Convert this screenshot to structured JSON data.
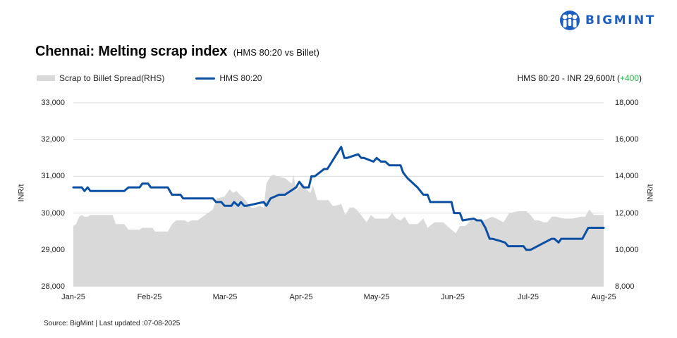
{
  "brand": {
    "name": "BIGMINT",
    "icon": "bigmint-people-logo-icon",
    "color": "#1f5fbf"
  },
  "header": {
    "title": "Chennai: Melting scrap index",
    "subtitle": "(HMS 80:20 vs Billet)"
  },
  "legend": {
    "items": [
      {
        "label": "Scrap to Billet Spread(RHS)",
        "type": "area",
        "color": "#d9d9d9"
      },
      {
        "label": "HMS 80:20",
        "type": "line",
        "color": "#0b4fa2"
      }
    ]
  },
  "latest": {
    "text": "HMS 80:20 - INR 29,600/t",
    "change_open": "(",
    "change": "+400",
    "change_close": ")",
    "change_color": "#2bb34a"
  },
  "axes": {
    "left_title": "INR/t",
    "right_title": "INR/t",
    "left_ticks": [
      "33,000",
      "32,000",
      "31,000",
      "30,000",
      "29,000",
      "28,000"
    ],
    "right_ticks": [
      "18,000",
      "16,000",
      "14,000",
      "12,000",
      "10,000",
      "8,000"
    ],
    "x_ticks": [
      "Jan-25",
      "Feb-25",
      "Mar-25",
      "Apr-25",
      "May-25",
      "Jun-25",
      "Jul-25",
      "Aug-25"
    ]
  },
  "footer": {
    "source": "Source: BigMint | Last updated :07-08-2025"
  },
  "chart_data": {
    "type": "line",
    "title": "Chennai: Melting scrap index (HMS 80:20 vs Billet)",
    "xlabel": "",
    "ylabel": "INR/t",
    "y2label": "INR/t",
    "ylim": [
      28000,
      33000
    ],
    "y2lim": [
      8000,
      18000
    ],
    "grid": true,
    "legend_position": "top-left",
    "x_range": [
      "Jan-25",
      "Aug-25"
    ],
    "categories": [
      "Jan-25",
      "Feb-25",
      "Mar-25",
      "Apr-25",
      "May-25",
      "Jun-25",
      "Jul-25",
      "Aug-25"
    ],
    "series": [
      {
        "name": "HMS 80:20",
        "type": "line",
        "axis": "left",
        "color": "#0b4fa2",
        "x_frac": [
          0.0,
          0.016,
          0.021,
          0.027,
          0.032,
          0.096,
          0.104,
          0.125,
          0.13,
          0.141,
          0.146,
          0.178,
          0.186,
          0.202,
          0.207,
          0.263,
          0.269,
          0.279,
          0.285,
          0.298,
          0.303,
          0.311,
          0.316,
          0.322,
          0.327,
          0.359,
          0.364,
          0.372,
          0.388,
          0.399,
          0.42,
          0.426,
          0.434,
          0.444,
          0.449,
          0.455,
          0.473,
          0.479,
          0.505,
          0.511,
          0.516,
          0.537,
          0.543,
          0.548,
          0.566,
          0.572,
          0.58,
          0.588,
          0.596,
          0.617,
          0.622,
          0.63,
          0.649,
          0.66,
          0.668,
          0.673,
          0.713,
          0.718,
          0.729,
          0.734,
          0.755,
          0.761,
          0.769,
          0.777,
          0.785,
          0.79,
          0.803,
          0.814,
          0.82,
          0.849,
          0.854,
          0.862,
          0.902,
          0.907,
          0.915,
          0.92,
          0.96,
          0.971,
          0.995,
          1.0
        ],
        "values": [
          30700,
          30700,
          30600,
          30700,
          30600,
          30600,
          30700,
          30700,
          30800,
          30800,
          30700,
          30700,
          30500,
          30500,
          30400,
          30400,
          30300,
          30300,
          30200,
          30200,
          30300,
          30200,
          30300,
          30200,
          30200,
          30300,
          30200,
          30400,
          30500,
          30500,
          30700,
          30850,
          30700,
          30700,
          31000,
          31000,
          31200,
          31200,
          31800,
          31500,
          31500,
          31600,
          31500,
          31500,
          31400,
          31500,
          31400,
          31400,
          31300,
          31300,
          31100,
          30950,
          30700,
          30500,
          30500,
          30300,
          30300,
          30000,
          30000,
          29800,
          29850,
          29800,
          29800,
          29600,
          29300,
          29300,
          29250,
          29200,
          29100,
          29100,
          29000,
          29000,
          29300,
          29300,
          29200,
          29300,
          29300,
          29600,
          29600,
          29600
        ]
      },
      {
        "name": "Scrap to Billet Spread(RHS)",
        "type": "area",
        "axis": "right",
        "color": "#d9d9d9",
        "x_frac": [
          0.0,
          0.005,
          0.011,
          0.016,
          0.021,
          0.027,
          0.032,
          0.037,
          0.074,
          0.08,
          0.096,
          0.104,
          0.125,
          0.13,
          0.149,
          0.154,
          0.165,
          0.178,
          0.186,
          0.194,
          0.21,
          0.216,
          0.223,
          0.234,
          0.263,
          0.271,
          0.285,
          0.295,
          0.301,
          0.308,
          0.314,
          0.322,
          0.33,
          0.335,
          0.34,
          0.343,
          0.351,
          0.359,
          0.364,
          0.372,
          0.378,
          0.383,
          0.399,
          0.412,
          0.415,
          0.42,
          0.428,
          0.434,
          0.439,
          0.447,
          0.452,
          0.46,
          0.468,
          0.481,
          0.489,
          0.495,
          0.505,
          0.513,
          0.521,
          0.529,
          0.537,
          0.545,
          0.553,
          0.561,
          0.569,
          0.577,
          0.585,
          0.593,
          0.601,
          0.609,
          0.617,
          0.625,
          0.633,
          0.649,
          0.66,
          0.668,
          0.681,
          0.697,
          0.713,
          0.721,
          0.729,
          0.739,
          0.75,
          0.755,
          0.774,
          0.79,
          0.798,
          0.811,
          0.822,
          0.838,
          0.846,
          0.854,
          0.862,
          0.87,
          0.878,
          0.886,
          0.894,
          0.902,
          0.91,
          0.926,
          0.934,
          0.942,
          0.957,
          0.965,
          0.973,
          0.981,
          0.989,
          1.0
        ],
        "values": [
          11300,
          11400,
          11800,
          11900,
          11800,
          11800,
          11900,
          11900,
          11900,
          11400,
          11400,
          11100,
          11100,
          11200,
          11200,
          11000,
          11000,
          11000,
          11400,
          11600,
          11600,
          11500,
          11600,
          11600,
          12200,
          12800,
          12900,
          13300,
          13100,
          13200,
          13000,
          12800,
          12500,
          12300,
          12300,
          12300,
          12400,
          12300,
          13600,
          14000,
          14100,
          14000,
          13900,
          13600,
          14100,
          13200,
          13500,
          13600,
          13300,
          13100,
          13500,
          12700,
          12700,
          12700,
          12400,
          12400,
          12500,
          11900,
          12300,
          12300,
          12100,
          11800,
          11500,
          11900,
          11700,
          11700,
          11700,
          11700,
          12000,
          11700,
          11600,
          11800,
          11400,
          11400,
          11700,
          11200,
          11500,
          11500,
          11100,
          10900,
          11300,
          11300,
          11600,
          11600,
          11600,
          11800,
          11700,
          11500,
          12000,
          12100,
          12100,
          12100,
          11900,
          11600,
          11600,
          11500,
          11500,
          11800,
          11800,
          11700,
          11700,
          11700,
          11800,
          11800,
          12200,
          11900,
          11900,
          11900
        ]
      }
    ]
  }
}
